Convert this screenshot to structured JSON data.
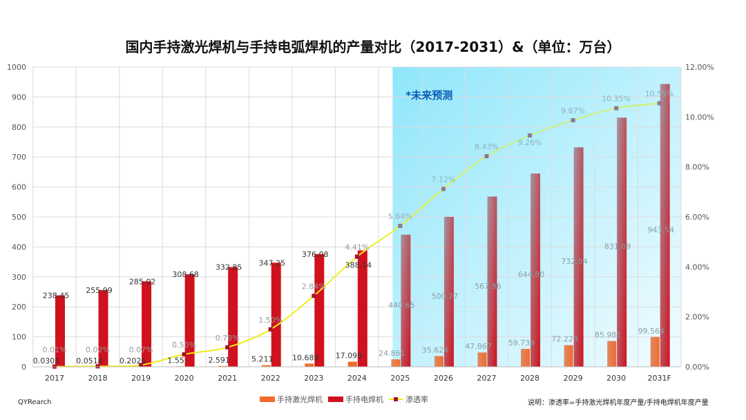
{
  "title": "国内手持激光焊机与手持电弧焊机的产量对比（2017-2031）&（单位：万台）",
  "source": "QYRearch",
  "note": "说明：渗透率=手持激光焊机年度产量/手持电焊机年度产量",
  "forecast_label": "*未来预测",
  "colors": {
    "laser": "#f56a2a",
    "arc": "#d0121e",
    "rate": "#f5e800",
    "marker": "#a3122a",
    "forecast_bg": "#8fe6fb"
  },
  "chart_data": {
    "type": "bar+line",
    "title": "国内手持激光焊机与手持电弧焊机的产量对比（2017-2031）&（单位：万台）",
    "categories": [
      "2017",
      "2018",
      "2019",
      "2020",
      "2021",
      "2022",
      "2023",
      "2024",
      "2025",
      "2026",
      "2027",
      "2028",
      "2029",
      "2030",
      "2031F"
    ],
    "forecast_start": "2025",
    "y_left": {
      "min": 0,
      "max": 1000,
      "ticks": [
        "0",
        "100",
        "200",
        "300",
        "400",
        "500",
        "600",
        "700",
        "800",
        "900",
        "1000"
      ]
    },
    "y_right": {
      "min": 0,
      "max": 12,
      "ticks": [
        "0.00%",
        "2.00%",
        "4.00%",
        "6.00%",
        "8.00%",
        "10.00%",
        "12.00%"
      ]
    },
    "grid": true,
    "legend_position": "bottom",
    "series": [
      {
        "name": "手持激光焊机",
        "type": "bar",
        "axis": "left",
        "values": [
          0.0303,
          0.0514,
          0.2026,
          1.55,
          2.591,
          5.211,
          10.689,
          17.098,
          24.861,
          35.624,
          47.867,
          59.739,
          72.223,
          85.981,
          99.564
        ],
        "labels": [
          "0.0303",
          "0.0514",
          "0.2026",
          "1.55",
          "2.591",
          "5.211",
          "10.689",
          "17.098",
          "24.861",
          "35.624",
          "47.867",
          "59.739",
          "72.223",
          "85.981",
          "99.564"
        ]
      },
      {
        "name": "手持电焊机",
        "type": "bar",
        "axis": "left",
        "values": [
          238.45,
          255.99,
          285.02,
          308.68,
          332.85,
          347.25,
          376.08,
          388.14,
          440.65,
          500.27,
          567.96,
          644.8,
          732.04,
          831.09,
          943.54
        ],
        "labels": [
          "238.45",
          "255.99",
          "285.02",
          "308.68",
          "332.85",
          "347.25",
          "376.08",
          "388.14",
          "440.65",
          "500.27",
          "567.96",
          "644.80",
          "732.04",
          "831.09",
          "943.54"
        ]
      },
      {
        "name": "渗透率",
        "type": "line",
        "axis": "right",
        "values": [
          0.01,
          0.02,
          0.07,
          0.5,
          0.78,
          1.5,
          2.84,
          4.41,
          5.64,
          7.12,
          8.43,
          9.26,
          9.87,
          10.35,
          10.55
        ],
        "labels": [
          "0.01%",
          "0.02%",
          "0.07%",
          "0.50%",
          "0.78%",
          "1.50%",
          "2.84%",
          "4.41%",
          "5.64%",
          "7.12%",
          "8.43%",
          "9.26%",
          "9.87%",
          "10.35%",
          "10.55%"
        ]
      }
    ]
  }
}
